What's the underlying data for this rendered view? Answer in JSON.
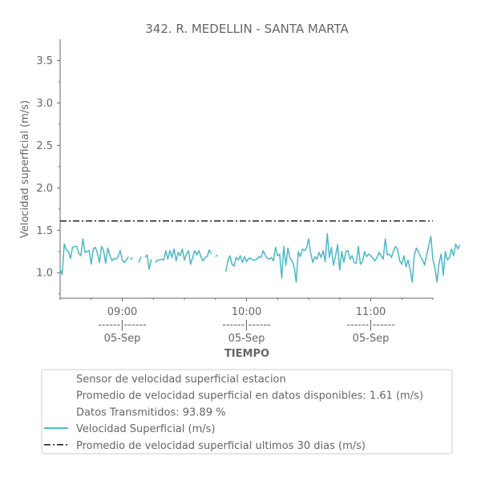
{
  "chart_data": {
    "type": "line",
    "title": "342. R. MEDELLIN - SANTA MARTA",
    "xlabel": "TIEMPO",
    "ylabel": "Velocidad superficial (m/s)",
    "ylim": [
      0.7,
      3.75
    ],
    "xlim": [
      "08:30",
      "11:30"
    ],
    "y_ticks": [
      "1.0",
      "1.5",
      "2.0",
      "2.5",
      "3.0",
      "3.5"
    ],
    "x_ticks": [
      {
        "time": "09:00",
        "sep": "------|------",
        "date": "05-Sep"
      },
      {
        "time": "10:00",
        "sep": "------|------",
        "date": "05-Sep"
      },
      {
        "time": "11:00",
        "sep": "------|------",
        "date": "05-Sep"
      }
    ],
    "average_line": {
      "name": "Promedio de velocidad superficial ultimos 30 dias (m/s)",
      "value": 1.61,
      "color": "#1a1a1a"
    },
    "series": [
      {
        "name": "Velocidad Superficial (m/s)",
        "color": "#4eb6c4",
        "segments": [
          {
            "start": "08:30",
            "step_min": 1,
            "values": [
              1.04,
              0.98,
              1.34,
              1.27,
              1.25,
              1.17,
              1.3,
              1.31,
              1.31,
              1.23,
              1.2,
              1.4,
              1.24,
              1.25,
              1.26,
              1.1,
              1.28,
              1.3,
              1.23,
              1.12,
              1.31,
              1.26,
              1.11,
              1.29,
              1.21,
              1.14,
              1.17,
              1.16,
              1.19,
              1.26,
              1.15,
              1.12,
              1.15,
              1.19
            ]
          },
          {
            "start": "09:04",
            "step_min": 1,
            "values": [
              1.15,
              1.18
            ]
          },
          {
            "start": "09:08",
            "step_min": 1,
            "values": [
              1.12,
              1.19
            ]
          },
          {
            "start": "09:11",
            "step_min": 1,
            "values": [
              1.18,
              1.21,
              1.04,
              1.16
            ]
          },
          {
            "start": "09:16",
            "step_min": 1,
            "values": [
              1.12,
              1.15,
              1.15,
              1.16,
              1.15,
              1.26,
              1.16,
              1.26,
              1.18,
              1.28,
              1.14,
              1.24,
              1.2,
              1.28,
              1.15,
              1.22,
              1.26,
              1.1,
              1.18,
              1.26,
              1.21,
              1.26,
              1.19,
              1.14,
              1.18,
              1.19,
              1.27,
              1.22
            ]
          },
          {
            "start": "09:45",
            "step_min": 1,
            "values": [
              1.19,
              1.21
            ]
          },
          {
            "start": "09:50",
            "step_min": 1,
            "values": [
              1.01,
              1.14,
              1.2,
              1.1,
              1.08,
              1.18,
              1.15,
              1.2,
              1.12,
              1.19,
              1.13,
              1.17,
              1.17,
              1.15,
              1.15,
              1.16,
              1.19,
              1.18,
              1.26,
              1.21,
              1.17,
              1.16,
              1.18,
              1.14,
              1.3,
              1.2,
              1.22,
              0.94,
              1.31,
              1.09,
              1.29,
              1.17,
              1.14,
              1.07,
              0.89,
              1.25,
              1.19,
              1.28,
              1.26,
              1.29,
              1.4,
              1.23,
              1.12,
              1.19,
              1.16,
              1.24,
              1.18,
              1.26,
              1.13,
              1.46,
              1.18,
              1.3,
              1.09,
              1.2,
              1.33,
              1.03,
              1.25,
              1.12,
              1.25,
              1.26,
              1.16,
              1.2,
              1.12,
              1.11,
              1.31,
              1.1,
              1.13,
              1.25,
              1.19,
              1.22,
              1.2,
              1.17,
              1.14,
              1.18,
              1.24,
              1.2,
              1.16,
              1.4,
              1.21,
              1.22,
              1.18,
              1.26,
              1.31,
              1.27,
              1.14,
              1.1,
              1.2,
              1.07,
              1.15,
              1.04,
              0.89,
              1.2,
              1.29,
              1.25,
              1.19,
              1.15,
              1.09,
              1.21,
              1.32,
              1.43,
              1.16,
              1.05,
              0.89,
              1.12,
              1.22,
              0.97,
              1.25,
              1.15,
              1.18,
              1.28,
              1.2,
              1.34,
              1.28,
              1.33
            ]
          }
        ]
      }
    ],
    "legend": {
      "placement": "bottom",
      "entries": [
        {
          "label": "Sensor de velocidad superficial estacion",
          "marker": "none"
        },
        {
          "label": "Promedio de velocidad superficial en datos disponibles: 1.61 (m/s)",
          "marker": "none"
        },
        {
          "label": "Datos Transmitidos: 93.89 %",
          "marker": "none"
        },
        {
          "label": "Velocidad Superficial (m/s)",
          "marker": "solid",
          "color": "#4eb6c4"
        },
        {
          "label": "Promedio de velocidad superficial ultimos 30 dias (m/s)",
          "marker": "dashdot",
          "color": "#1a1a1a"
        }
      ]
    }
  }
}
